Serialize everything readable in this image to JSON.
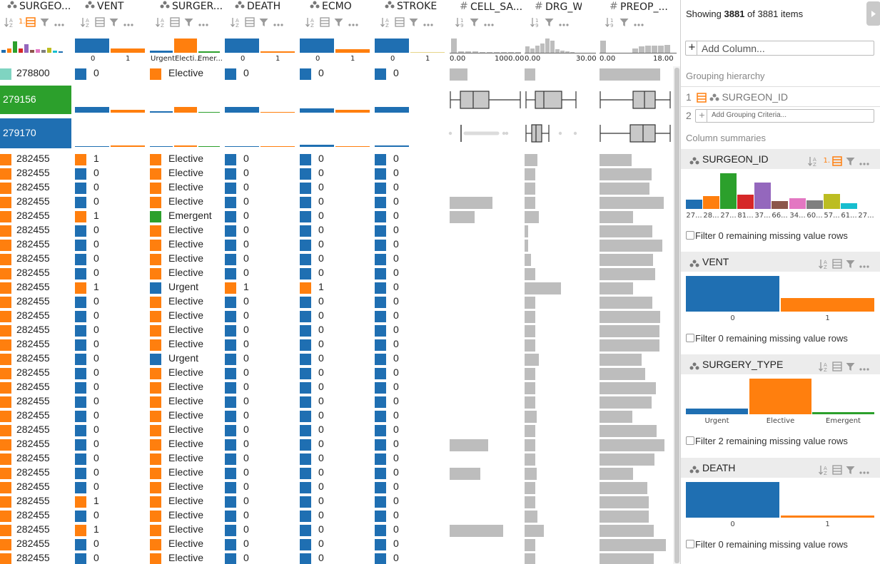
{
  "colors": {
    "blue": "#1f6fb2",
    "orange": "#ff7f0e",
    "green": "#2ca02c",
    "teal": "#7fd4c1",
    "gray_bar": "#bdbdbd",
    "panel_header": "#ececec"
  },
  "columns": [
    {
      "name": "SURGEON_ID",
      "display": "SURGEO...",
      "type": "categorical"
    },
    {
      "name": "VENT",
      "display": "VENT",
      "type": "categorical"
    },
    {
      "name": "SURGERY_TYPE",
      "display": "SURGER...",
      "type": "categorical"
    },
    {
      "name": "DEATH",
      "display": "DEATH",
      "type": "categorical"
    },
    {
      "name": "ECMO",
      "display": "ECMO",
      "type": "categorical"
    },
    {
      "name": "STROKE",
      "display": "STROKE",
      "type": "categorical"
    },
    {
      "name": "CELL_SAVER",
      "display": "CELL_SA...",
      "type": "numeric"
    },
    {
      "name": "DRG_WEIGHT",
      "display": "DRG_W...",
      "type": "numeric"
    },
    {
      "name": "PREOP",
      "display": "PREOP_...",
      "type": "numeric"
    }
  ],
  "header_axis": {
    "vent": [
      "0",
      "1"
    ],
    "surgery": [
      "Urgent",
      "Electi...",
      "Emer..."
    ],
    "death": [
      "0",
      "1"
    ],
    "ecmo": [
      "0",
      "1"
    ],
    "stroke": [
      "0",
      "1"
    ],
    "cell": [
      "0.00",
      "1000.00"
    ],
    "drg": [
      "0.00",
      "30.00"
    ],
    "preop": [
      "0.00",
      "18.00"
    ]
  },
  "rank_label": "1.",
  "group_rows": [
    {
      "id": "278800",
      "color": "#7fd4c1",
      "vent": "0",
      "surgery": "Elective",
      "death": "0",
      "ecmo": "0",
      "stroke": "0",
      "cell": 0.25,
      "drg": 0.15,
      "preop": 0.85
    },
    {
      "id": "279156",
      "color": "#2ca02c"
    },
    {
      "id": "279170",
      "color": "#1f6fb2"
    }
  ],
  "rows": [
    {
      "id": "282455",
      "vent": "1",
      "surgery": "Elective",
      "death": "0",
      "ecmo": "0",
      "stroke": "0",
      "cell": 0,
      "drg": 0.18,
      "preop": 0.45
    },
    {
      "id": "282455",
      "vent": "0",
      "surgery": "Elective",
      "death": "0",
      "ecmo": "0",
      "stroke": "0",
      "cell": 0,
      "drg": 0.15,
      "preop": 0.73
    },
    {
      "id": "282455",
      "vent": "0",
      "surgery": "Elective",
      "death": "0",
      "ecmo": "0",
      "stroke": "0",
      "cell": 0,
      "drg": 0.15,
      "preop": 0.7
    },
    {
      "id": "282455",
      "vent": "0",
      "surgery": "Elective",
      "death": "0",
      "ecmo": "0",
      "stroke": "0",
      "cell": 0.6,
      "drg": 0.15,
      "preop": 0.9
    },
    {
      "id": "282455",
      "vent": "1",
      "surgery": "Emergent",
      "death": "0",
      "ecmo": "0",
      "stroke": "0",
      "cell": 0.35,
      "drg": 0.2,
      "preop": 0.47
    },
    {
      "id": "282455",
      "vent": "0",
      "surgery": "Elective",
      "death": "0",
      "ecmo": "0",
      "stroke": "0",
      "cell": 0,
      "drg": 0.05,
      "preop": 0.74
    },
    {
      "id": "282455",
      "vent": "0",
      "surgery": "Elective",
      "death": "0",
      "ecmo": "0",
      "stroke": "0",
      "cell": 0,
      "drg": 0.05,
      "preop": 0.88
    },
    {
      "id": "282455",
      "vent": "0",
      "surgery": "Elective",
      "death": "0",
      "ecmo": "0",
      "stroke": "0",
      "cell": 0,
      "drg": 0.09,
      "preop": 0.75
    },
    {
      "id": "282455",
      "vent": "0",
      "surgery": "Elective",
      "death": "0",
      "ecmo": "0",
      "stroke": "0",
      "cell": 0,
      "drg": 0.15,
      "preop": 0.78
    },
    {
      "id": "282455",
      "vent": "1",
      "surgery": "Urgent",
      "death": "1",
      "ecmo": "1",
      "stroke": "0",
      "cell": 0,
      "drg": 0.51,
      "preop": 0.47
    },
    {
      "id": "282455",
      "vent": "0",
      "surgery": "Elective",
      "death": "0",
      "ecmo": "0",
      "stroke": "0",
      "cell": 0,
      "drg": 0.15,
      "preop": 0.74
    },
    {
      "id": "282455",
      "vent": "0",
      "surgery": "Elective",
      "death": "0",
      "ecmo": "0",
      "stroke": "0",
      "cell": 0,
      "drg": 0.15,
      "preop": 0.85
    },
    {
      "id": "282455",
      "vent": "0",
      "surgery": "Elective",
      "death": "0",
      "ecmo": "0",
      "stroke": "0",
      "cell": 0,
      "drg": 0.15,
      "preop": 0.84
    },
    {
      "id": "282455",
      "vent": "0",
      "surgery": "Elective",
      "death": "0",
      "ecmo": "0",
      "stroke": "0",
      "cell": 0,
      "drg": 0.15,
      "preop": 0.84
    },
    {
      "id": "282455",
      "vent": "0",
      "surgery": "Urgent",
      "death": "0",
      "ecmo": "0",
      "stroke": "0",
      "cell": 0,
      "drg": 0.2,
      "preop": 0.59
    },
    {
      "id": "282455",
      "vent": "0",
      "surgery": "Elective",
      "death": "0",
      "ecmo": "0",
      "stroke": "0",
      "cell": 0,
      "drg": 0.15,
      "preop": 0.64
    },
    {
      "id": "282455",
      "vent": "0",
      "surgery": "Elective",
      "death": "0",
      "ecmo": "0",
      "stroke": "0",
      "cell": 0,
      "drg": 0.15,
      "preop": 0.79
    },
    {
      "id": "282455",
      "vent": "0",
      "surgery": "Elective",
      "death": "0",
      "ecmo": "0",
      "stroke": "0",
      "cell": 0,
      "drg": 0.15,
      "preop": 0.73
    },
    {
      "id": "282455",
      "vent": "0",
      "surgery": "Elective",
      "death": "0",
      "ecmo": "0",
      "stroke": "0",
      "cell": 0,
      "drg": 0.17,
      "preop": 0.46
    },
    {
      "id": "282455",
      "vent": "0",
      "surgery": "Elective",
      "death": "0",
      "ecmo": "0",
      "stroke": "0",
      "cell": 0,
      "drg": 0.15,
      "preop": 0.8
    },
    {
      "id": "282455",
      "vent": "0",
      "surgery": "Elective",
      "death": "0",
      "ecmo": "0",
      "stroke": "0",
      "cell": 0.54,
      "drg": 0.15,
      "preop": 0.91
    },
    {
      "id": "282455",
      "vent": "0",
      "surgery": "Elective",
      "death": "0",
      "ecmo": "0",
      "stroke": "0",
      "cell": 0,
      "drg": 0.15,
      "preop": 0.77
    },
    {
      "id": "282455",
      "vent": "0",
      "surgery": "Elective",
      "death": "0",
      "ecmo": "0",
      "stroke": "0",
      "cell": 0.43,
      "drg": 0.17,
      "preop": 0.47
    },
    {
      "id": "282455",
      "vent": "0",
      "surgery": "Elective",
      "death": "0",
      "ecmo": "0",
      "stroke": "0",
      "cell": 0,
      "drg": 0.15,
      "preop": 0.67
    },
    {
      "id": "282455",
      "vent": "1",
      "surgery": "Elective",
      "death": "0",
      "ecmo": "0",
      "stroke": "0",
      "cell": 0,
      "drg": 0.15,
      "preop": 0.69
    },
    {
      "id": "282455",
      "vent": "0",
      "surgery": "Elective",
      "death": "0",
      "ecmo": "0",
      "stroke": "0",
      "cell": 0,
      "drg": 0.18,
      "preop": 0.69
    },
    {
      "id": "282455",
      "vent": "1",
      "surgery": "Elective",
      "death": "0",
      "ecmo": "0",
      "stroke": "0",
      "cell": 0.75,
      "drg": 0.27,
      "preop": 0.76
    },
    {
      "id": "282455",
      "vent": "0",
      "surgery": "Elective",
      "death": "0",
      "ecmo": "0",
      "stroke": "0",
      "cell": 0,
      "drg": 0.15,
      "preop": 0.93
    },
    {
      "id": "282455",
      "vent": "0",
      "surgery": "Elective",
      "death": "0",
      "ecmo": "0",
      "stroke": "0",
      "cell": 0,
      "drg": 0.15,
      "preop": 0.76
    }
  ],
  "side_panel": {
    "showing_prefix": "Showing ",
    "showing_count": "3881",
    "showing_middle": " of ",
    "showing_total": "3881",
    "showing_suffix": " items",
    "add_column_plus": "+",
    "add_column_placeholder": "Add Column...",
    "grouping_heading": "Grouping hierarchy",
    "grouping_item_index": "1",
    "grouping_item_name": "SURGEON_ID",
    "grouping_add_index": "2",
    "grouping_add_placeholder": "Add Grouping Criteria...",
    "summaries_heading": "Column summaries",
    "cards": [
      {
        "name": "SURGEON_ID",
        "rank": "1.",
        "filter_text": "Filter 0 remaining missing value rows",
        "bars": [
          {
            "label": "27...",
            "value": 0.25,
            "color": "#1f6fb2"
          },
          {
            "label": "28...",
            "value": 0.36,
            "color": "#ff7f0e"
          },
          {
            "label": "27...",
            "value": 1.0,
            "color": "#2ca02c"
          },
          {
            "label": "81...",
            "value": 0.4,
            "color": "#d62728"
          },
          {
            "label": "37...",
            "value": 0.74,
            "color": "#9467bd"
          },
          {
            "label": "66...",
            "value": 0.22,
            "color": "#8c564b"
          },
          {
            "label": "34...",
            "value": 0.3,
            "color": "#e377c2"
          },
          {
            "label": "60...",
            "value": 0.24,
            "color": "#7f7f7f"
          },
          {
            "label": "57...",
            "value": 0.42,
            "color": "#bcbd22"
          },
          {
            "label": "61...",
            "value": 0.16,
            "color": "#17becf"
          },
          {
            "label": "27...",
            "value": 0.0,
            "color": "#1f6fb2"
          }
        ]
      },
      {
        "name": "VENT",
        "filter_text": "Filter 0 remaining missing value rows",
        "bars": [
          {
            "label": "0",
            "value": 1.0,
            "color": "#1f6fb2"
          },
          {
            "label": "1",
            "value": 0.37,
            "color": "#ff7f0e"
          }
        ]
      },
      {
        "name": "SURGERY_TYPE",
        "filter_text": "Filter 2 remaining missing value rows",
        "bars": [
          {
            "label": "Urgent",
            "value": 0.15,
            "color": "#1f6fb2"
          },
          {
            "label": "Elective",
            "value": 1.0,
            "color": "#ff7f0e"
          },
          {
            "label": "Emergent",
            "value": 0.05,
            "color": "#2ca02c"
          }
        ]
      },
      {
        "name": "DEATH",
        "filter_text": "Filter 0 remaining missing value rows",
        "bars": [
          {
            "label": "0",
            "value": 1.0,
            "color": "#1f6fb2"
          },
          {
            "label": "1",
            "value": 0.05,
            "color": "#ff7f0e"
          }
        ]
      }
    ]
  }
}
